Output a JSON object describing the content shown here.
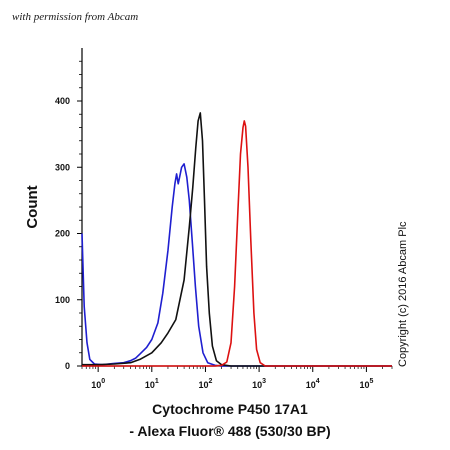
{
  "permission_text": "with permission from Abcam",
  "copyright_text": "Copyright (c) 2016 Abcam Plc",
  "chart_data": {
    "type": "line",
    "title": "",
    "xlabel_line1": "Cytochrome P450 17A1",
    "xlabel_line2": "- Alexa Fluor® 488 (530/30 BP)",
    "ylabel": "Count",
    "x_scale": "log",
    "xlim": [
      0.5,
      300000
    ],
    "ylim": [
      0,
      480
    ],
    "x_ticks": [
      {
        "value": 1,
        "label_base": "10",
        "label_exp": "0"
      },
      {
        "value": 10,
        "label_base": "10",
        "label_exp": "1"
      },
      {
        "value": 100,
        "label_base": "10",
        "label_exp": "2"
      },
      {
        "value": 1000,
        "label_base": "10",
        "label_exp": "3"
      },
      {
        "value": 10000,
        "label_base": "10",
        "label_exp": "4"
      },
      {
        "value": 100000,
        "label_base": "10",
        "label_exp": "5"
      }
    ],
    "y_ticks": [
      0,
      100,
      200,
      300,
      400
    ],
    "grid": false,
    "series": [
      {
        "color": "#1f1fd0",
        "points": [
          [
            0.5,
            200
          ],
          [
            0.55,
            90
          ],
          [
            0.62,
            35
          ],
          [
            0.7,
            10
          ],
          [
            0.85,
            3
          ],
          [
            1.2,
            2
          ],
          [
            2,
            4
          ],
          [
            3,
            5
          ],
          [
            4,
            8
          ],
          [
            5,
            12
          ],
          [
            6,
            18
          ],
          [
            8,
            28
          ],
          [
            10,
            40
          ],
          [
            13,
            65
          ],
          [
            16,
            110
          ],
          [
            20,
            175
          ],
          [
            24,
            240
          ],
          [
            27,
            275
          ],
          [
            29,
            290
          ],
          [
            31,
            275
          ],
          [
            33,
            285
          ],
          [
            36,
            300
          ],
          [
            40,
            305
          ],
          [
            45,
            285
          ],
          [
            50,
            250
          ],
          [
            57,
            185
          ],
          [
            65,
            120
          ],
          [
            75,
            60
          ],
          [
            90,
            20
          ],
          [
            110,
            5
          ],
          [
            150,
            1
          ],
          [
            200,
            0
          ],
          [
            300000,
            0
          ]
        ]
      },
      {
        "color": "#111111",
        "points": [
          [
            0.5,
            2
          ],
          [
            1,
            2
          ],
          [
            2,
            3
          ],
          [
            4,
            5
          ],
          [
            6,
            10
          ],
          [
            10,
            20
          ],
          [
            15,
            35
          ],
          [
            20,
            50
          ],
          [
            28,
            70
          ],
          [
            40,
            130
          ],
          [
            50,
            210
          ],
          [
            58,
            270
          ],
          [
            66,
            330
          ],
          [
            73,
            370
          ],
          [
            80,
            382
          ],
          [
            88,
            340
          ],
          [
            96,
            250
          ],
          [
            105,
            150
          ],
          [
            118,
            80
          ],
          [
            135,
            30
          ],
          [
            160,
            8
          ],
          [
            200,
            2
          ],
          [
            300,
            0
          ],
          [
            300000,
            0
          ]
        ]
      },
      {
        "color": "#dd1111",
        "points": [
          [
            0.5,
            0
          ],
          [
            150,
            0
          ],
          [
            200,
            1
          ],
          [
            250,
            6
          ],
          [
            300,
            35
          ],
          [
            350,
            120
          ],
          [
            400,
            230
          ],
          [
            450,
            320
          ],
          [
            500,
            360
          ],
          [
            530,
            370
          ],
          [
            560,
            362
          ],
          [
            620,
            300
          ],
          [
            700,
            190
          ],
          [
            800,
            80
          ],
          [
            900,
            25
          ],
          [
            1050,
            5
          ],
          [
            1300,
            0
          ],
          [
            300000,
            0
          ]
        ]
      }
    ]
  }
}
